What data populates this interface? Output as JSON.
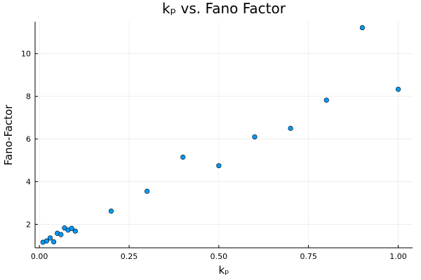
{
  "chart_data": {
    "type": "scatter",
    "title": "kₚ vs. Fano Factor",
    "xlabel": "kₚ",
    "ylabel": "Fano-Factor",
    "xlim": [
      -0.012,
      1.04
    ],
    "ylim": [
      0.9,
      11.5
    ],
    "xticks": [
      0.0,
      0.25,
      0.5,
      0.75,
      1.0
    ],
    "xtick_labels": [
      "0.00",
      "0.25",
      "0.50",
      "0.75",
      "1.00"
    ],
    "yticks": [
      2,
      4,
      6,
      8,
      10
    ],
    "ytick_labels": [
      "2",
      "4",
      "6",
      "8",
      "10"
    ],
    "grid": true,
    "legend": "none",
    "marker_color": "#009AFA",
    "points": [
      {
        "x": 0.01,
        "y": 1.16
      },
      {
        "x": 0.02,
        "y": 1.22
      },
      {
        "x": 0.03,
        "y": 1.36
      },
      {
        "x": 0.04,
        "y": 1.18
      },
      {
        "x": 0.05,
        "y": 1.58
      },
      {
        "x": 0.06,
        "y": 1.52
      },
      {
        "x": 0.07,
        "y": 1.83
      },
      {
        "x": 0.08,
        "y": 1.73
      },
      {
        "x": 0.09,
        "y": 1.81
      },
      {
        "x": 0.1,
        "y": 1.68
      },
      {
        "x": 0.2,
        "y": 2.62
      },
      {
        "x": 0.3,
        "y": 3.55
      },
      {
        "x": 0.4,
        "y": 5.15
      },
      {
        "x": 0.5,
        "y": 4.75
      },
      {
        "x": 0.6,
        "y": 6.1
      },
      {
        "x": 0.7,
        "y": 6.5
      },
      {
        "x": 0.8,
        "y": 7.82
      },
      {
        "x": 0.9,
        "y": 11.22
      },
      {
        "x": 1.0,
        "y": 8.33
      }
    ]
  }
}
